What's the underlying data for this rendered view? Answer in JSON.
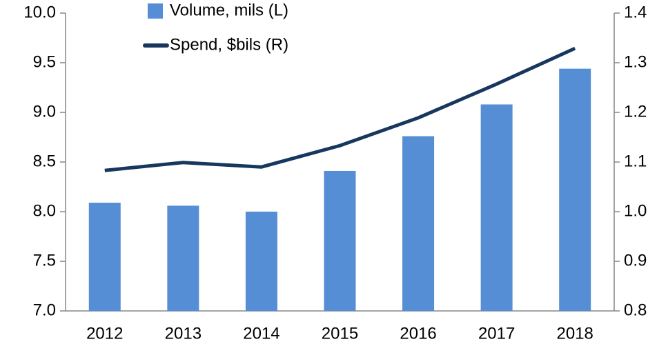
{
  "chart_data": {
    "type": "bar_line",
    "categories": [
      "2012",
      "2013",
      "2014",
      "2015",
      "2016",
      "2017",
      "2018"
    ],
    "series": [
      {
        "name": "Volume, mils (L)",
        "color": "#558ed5",
        "type": "bar",
        "values": [
          8.09,
          8.06,
          8.0,
          8.41,
          8.76,
          9.08,
          9.44
        ]
      },
      {
        "name": "Spend, $bils (R)",
        "color": "#17375e",
        "type": "line",
        "axis": "y2",
        "values": [
          1.083,
          1.099,
          1.09,
          1.133,
          1.189,
          1.257,
          1.329
        ]
      }
    ],
    "ylim": [
      7.0,
      10.0
    ],
    "yticks": [
      {
        "value": 7,
        "label": "7.0"
      },
      7.5,
      {
        "value": 8,
        "label": "8.0"
      },
      8.5,
      {
        "value": 9,
        "label": "9.0"
      },
      9.5,
      {
        "value": 10,
        "label": "10.0"
      }
    ],
    "y2lim": [
      0.8,
      1.4
    ],
    "y2ticks": [
      0.8,
      0.9,
      {
        "value": 1,
        "label": "1.0"
      },
      1.1,
      1.2,
      1.3,
      1.4
    ],
    "grid": false
  }
}
